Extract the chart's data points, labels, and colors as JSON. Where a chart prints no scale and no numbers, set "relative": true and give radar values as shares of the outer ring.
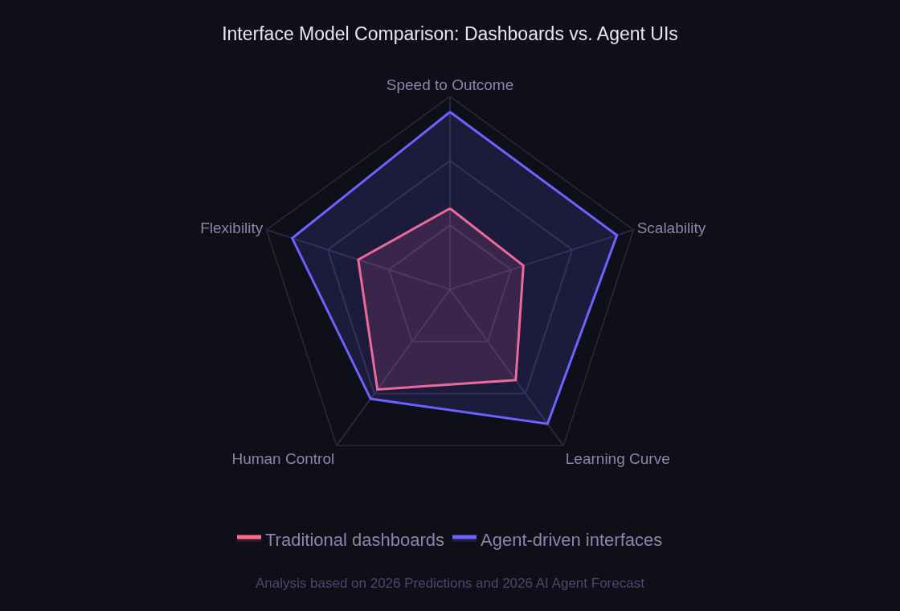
{
  "chart_data": {
    "type": "radar",
    "title": "Interface Model Comparison: Dashboards vs. Agent UIs",
    "categories": [
      "Speed to Outcome",
      "Scalability",
      "Learning Curve",
      "Human Control",
      "Flexibility"
    ],
    "relative": true,
    "legend": "bottom",
    "grid": true,
    "series": [
      {
        "name": "Traditional dashboards",
        "color": "#ff6b8a",
        "values": [
          0.42,
          0.4,
          0.58,
          0.64,
          0.5
        ]
      },
      {
        "name": "Agent-driven interfaces",
        "color": "#6c63ff",
        "values": [
          0.92,
          0.91,
          0.86,
          0.7,
          0.86
        ]
      }
    ],
    "annotations": [
      "Analysis based on 2026 Predictions and 2026 AI Agent Forecast"
    ]
  }
}
